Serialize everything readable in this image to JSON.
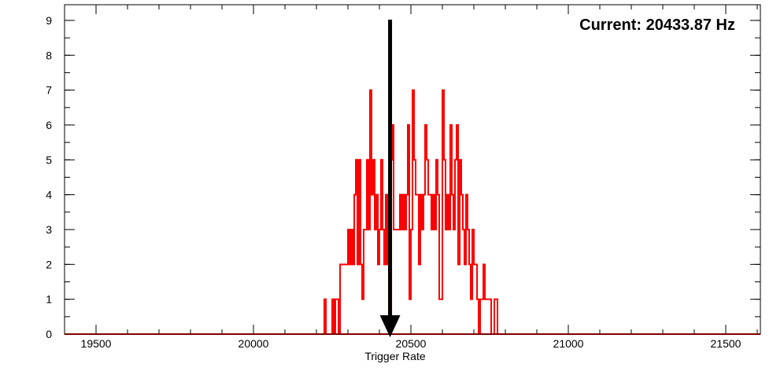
{
  "chart_data": {
    "type": "histogram",
    "xlabel": "Trigger Rate",
    "ylabel": "",
    "title": "",
    "xlim": [
      19400,
      21610
    ],
    "ylim": [
      0,
      9.45
    ],
    "x_ticks_major": [
      19500,
      20000,
      20500,
      21000,
      21500
    ],
    "x_tick_labels": [
      "19500",
      "20000",
      "20500",
      "21000",
      "21500"
    ],
    "x_minor_step": 100,
    "y_ticks_major": [
      0,
      1,
      2,
      3,
      4,
      5,
      6,
      7,
      8,
      9
    ],
    "y_tick_labels": [
      "0",
      "1",
      "2",
      "3",
      "4",
      "5",
      "6",
      "7",
      "8",
      "9"
    ],
    "y_minor_step": 0.5,
    "grid": false,
    "bin_width": 5,
    "series": [
      {
        "color": "#ff0000",
        "bins": [
          [
            20225,
            1
          ],
          [
            20230,
            0
          ],
          [
            20235,
            0
          ],
          [
            20240,
            0
          ],
          [
            20245,
            0
          ],
          [
            20250,
            1
          ],
          [
            20255,
            0
          ],
          [
            20260,
            1
          ],
          [
            20265,
            1
          ],
          [
            20270,
            0
          ],
          [
            20275,
            2
          ],
          [
            20280,
            2
          ],
          [
            20285,
            2
          ],
          [
            20290,
            2
          ],
          [
            20295,
            2
          ],
          [
            20300,
            3
          ],
          [
            20305,
            2
          ],
          [
            20310,
            3
          ],
          [
            20315,
            2
          ],
          [
            20320,
            4
          ],
          [
            20325,
            5
          ],
          [
            20330,
            2
          ],
          [
            20335,
            5
          ],
          [
            20340,
            2
          ],
          [
            20345,
            1
          ],
          [
            20350,
            3
          ],
          [
            20355,
            3
          ],
          [
            20360,
            5
          ],
          [
            20365,
            3
          ],
          [
            20370,
            7
          ],
          [
            20375,
            4
          ],
          [
            20380,
            5
          ],
          [
            20385,
            3
          ],
          [
            20390,
            4
          ],
          [
            20395,
            2
          ],
          [
            20400,
            3
          ],
          [
            20405,
            5
          ],
          [
            20410,
            3
          ],
          [
            20415,
            2
          ],
          [
            20420,
            4
          ],
          [
            20425,
            2
          ],
          [
            20430,
            0
          ],
          [
            20435,
            5
          ],
          [
            20440,
            6
          ],
          [
            20445,
            3
          ],
          [
            20450,
            3
          ],
          [
            20455,
            3
          ],
          [
            20460,
            3
          ],
          [
            20465,
            4
          ],
          [
            20470,
            3
          ],
          [
            20475,
            4
          ],
          [
            20480,
            3
          ],
          [
            20485,
            4
          ],
          [
            20490,
            6
          ],
          [
            20495,
            1
          ],
          [
            20500,
            3
          ],
          [
            20505,
            7
          ],
          [
            20510,
            5
          ],
          [
            20515,
            4
          ],
          [
            20520,
            4
          ],
          [
            20525,
            2
          ],
          [
            20530,
            4
          ],
          [
            20535,
            3
          ],
          [
            20540,
            4
          ],
          [
            20545,
            6
          ],
          [
            20550,
            5
          ],
          [
            20555,
            4
          ],
          [
            20560,
            4
          ],
          [
            20565,
            3
          ],
          [
            20570,
            4
          ],
          [
            20575,
            3
          ],
          [
            20580,
            5
          ],
          [
            20585,
            4
          ],
          [
            20590,
            1
          ],
          [
            20595,
            1
          ],
          [
            20600,
            7
          ],
          [
            20605,
            5
          ],
          [
            20610,
            3
          ],
          [
            20615,
            4
          ],
          [
            20620,
            3
          ],
          [
            20625,
            6
          ],
          [
            20630,
            4
          ],
          [
            20635,
            3
          ],
          [
            20640,
            5
          ],
          [
            20645,
            6
          ],
          [
            20650,
            2
          ],
          [
            20655,
            5
          ],
          [
            20660,
            4
          ],
          [
            20665,
            3
          ],
          [
            20670,
            2
          ],
          [
            20675,
            4
          ],
          [
            20680,
            3
          ],
          [
            20685,
            2
          ],
          [
            20690,
            1
          ],
          [
            20695,
            3
          ],
          [
            20700,
            2
          ],
          [
            20705,
            2
          ],
          [
            20710,
            1
          ],
          [
            20715,
            0
          ],
          [
            20720,
            1
          ],
          [
            20725,
            1
          ],
          [
            20730,
            2
          ],
          [
            20735,
            1
          ],
          [
            20740,
            1
          ],
          [
            20745,
            1
          ],
          [
            20750,
            1
          ],
          [
            20755,
            0
          ],
          [
            20760,
            0
          ],
          [
            20765,
            1
          ],
          [
            20770,
            1
          ],
          [
            20775,
            0
          ]
        ]
      }
    ],
    "annotation": {
      "text": "Current: 20433.87 Hz",
      "arrow_x": 20433.87,
      "arrow_color": "#000000"
    }
  }
}
